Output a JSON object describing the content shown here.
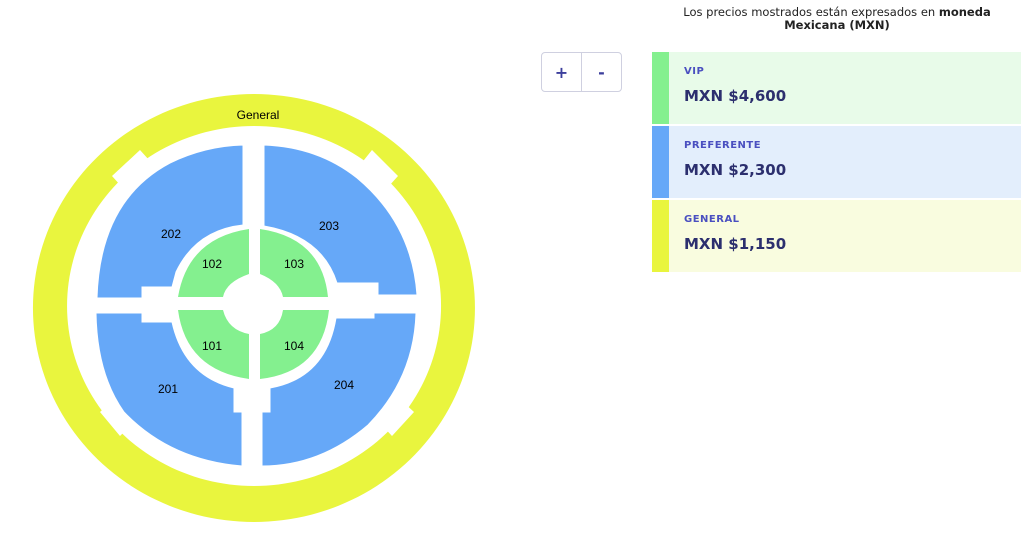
{
  "notice": {
    "text_before": "Los precios mostrados están expresados en ",
    "text_bold": "moneda Mexicana (MXN)"
  },
  "zoom": {
    "in_label": "+",
    "out_label": "-"
  },
  "prices": [
    {
      "category": "VIP",
      "amount": "MXN $4,600",
      "bar_color": "#84f08f",
      "bg_color": "#e8fbe9"
    },
    {
      "category": "PREFERENTE",
      "amount": "MXN $2,300",
      "bar_color": "#66a8f8",
      "bg_color": "#e3eefc"
    },
    {
      "category": "GENERAL",
      "amount": "MXN $1,150",
      "bar_color": "#e9f53e",
      "bg_color": "#f9fcdf"
    }
  ],
  "venue": {
    "general_label": "General",
    "sections": {
      "s101": "101",
      "s102": "102",
      "s103": "103",
      "s104": "104",
      "s201": "201",
      "s202": "202",
      "s203": "203",
      "s204": "204"
    },
    "colors": {
      "vip": "#84f08f",
      "preferente": "#66a8f8",
      "general": "#e9f53e"
    }
  }
}
